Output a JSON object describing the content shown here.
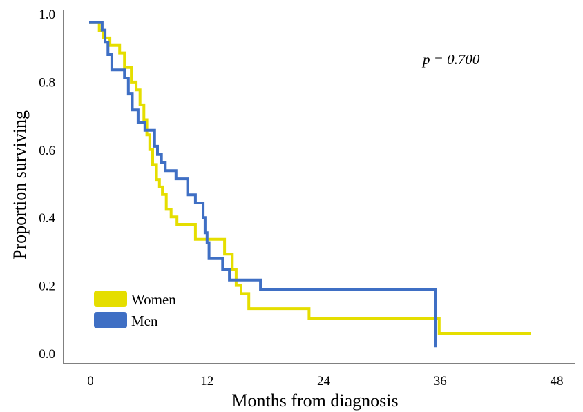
{
  "chart_data": {
    "type": "line",
    "step": true,
    "xlabel": "Months from diagnosis",
    "ylabel": "Proportion surviving",
    "xlim": [
      0,
      48
    ],
    "ylim": [
      0,
      1.0
    ],
    "xticks": [
      0,
      12,
      24,
      36,
      48
    ],
    "yticks": [
      0.0,
      0.2,
      0.4,
      0.6,
      0.8,
      1.0
    ],
    "xtick_labels": [
      "0",
      "12",
      "24",
      "36",
      "48"
    ],
    "ytick_labels": [
      "0.0",
      "0.2",
      "0.4",
      "0.6",
      "0.8",
      "1.0"
    ],
    "grid": false,
    "legend_position": "bottom-left",
    "annotation": "p = 0.700",
    "series": [
      {
        "name": "Women",
        "color": "#E5DE00",
        "points": [
          [
            0,
            0.974
          ],
          [
            0.9,
            0.951
          ],
          [
            1.3,
            0.929
          ],
          [
            2.0,
            0.907
          ],
          [
            3.0,
            0.885
          ],
          [
            3.5,
            0.842
          ],
          [
            4.2,
            0.799
          ],
          [
            4.7,
            0.776
          ],
          [
            5.1,
            0.732
          ],
          [
            5.5,
            0.688
          ],
          [
            5.8,
            0.644
          ],
          [
            6.1,
            0.6
          ],
          [
            6.4,
            0.556
          ],
          [
            6.8,
            0.512
          ],
          [
            7.1,
            0.49
          ],
          [
            7.4,
            0.468
          ],
          [
            7.8,
            0.424
          ],
          [
            8.3,
            0.402
          ],
          [
            8.9,
            0.38
          ],
          [
            10.8,
            0.336
          ],
          [
            13.8,
            0.292
          ],
          [
            14.6,
            0.248
          ],
          [
            15.0,
            0.2
          ],
          [
            15.5,
            0.176
          ],
          [
            16.3,
            0.132
          ],
          [
            22.5,
            0.103
          ],
          [
            35.9,
            0.059
          ],
          [
            45.2,
            0.059
          ]
        ]
      },
      {
        "name": "Men",
        "color": "#3F6FC4",
        "points": [
          [
            0,
            0.974
          ],
          [
            1.2,
            0.952
          ],
          [
            1.5,
            0.916
          ],
          [
            1.8,
            0.88
          ],
          [
            2.2,
            0.835
          ],
          [
            3.5,
            0.811
          ],
          [
            3.9,
            0.764
          ],
          [
            4.3,
            0.717
          ],
          [
            4.9,
            0.68
          ],
          [
            5.6,
            0.657
          ],
          [
            6.6,
            0.61
          ],
          [
            6.9,
            0.586
          ],
          [
            7.3,
            0.563
          ],
          [
            7.7,
            0.538
          ],
          [
            8.8,
            0.514
          ],
          [
            10.0,
            0.467
          ],
          [
            10.8,
            0.443
          ],
          [
            11.6,
            0.4
          ],
          [
            11.8,
            0.355
          ],
          [
            12.0,
            0.326
          ],
          [
            12.2,
            0.279
          ],
          [
            13.6,
            0.247
          ],
          [
            14.3,
            0.216
          ],
          [
            17.5,
            0.188
          ],
          [
            35.5,
            0.022
          ]
        ]
      }
    ]
  }
}
